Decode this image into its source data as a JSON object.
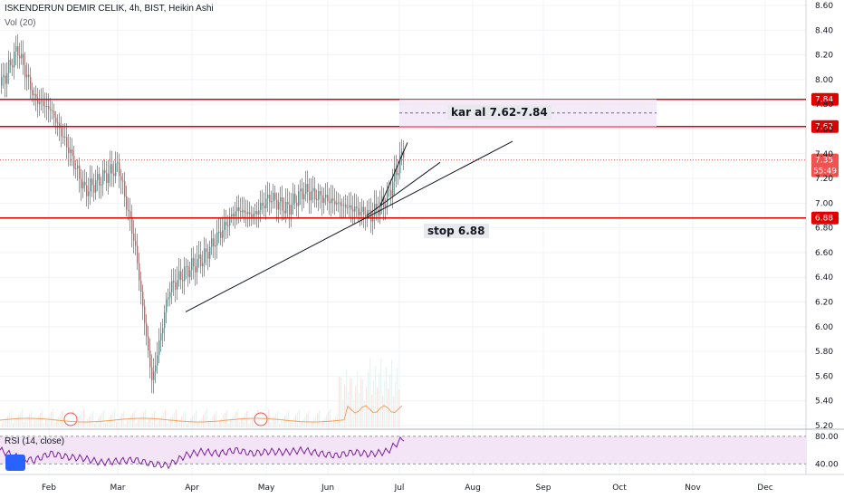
{
  "header": {
    "title": "ISKENDERUN DEMIR CELIK, 4h, BIST, Heikin Ashi",
    "volume": "Vol (20)",
    "rsi": "RSI (14, close)"
  },
  "annotations": {
    "target": "kar al 7.62-7.84",
    "stop": "stop 6.88"
  },
  "colors": {
    "up": "#26a69a",
    "down": "#ef5350",
    "level": "#e00000",
    "rsi": "#7b1fa2",
    "rsi_band": "#f3e5f5",
    "volume_ma": "#f5a05a",
    "tag_current": "#ef5350"
  },
  "chart_data": [
    {
      "type": "line",
      "subtype": "heikin-ashi candles",
      "title": "ISKENDERUN DEMIR CELIK, 4h, BIST, Heikin Ashi",
      "x_ticks": [
        "Feb",
        "Mar",
        "Apr",
        "May",
        "Jun",
        "Jul",
        "Aug",
        "Sep",
        "Oct",
        "Nov",
        "Dec"
      ],
      "y_ticks": [
        "8.60",
        "8.40",
        "8.20",
        "8.00",
        "7.80",
        "7.60",
        "7.40",
        "7.20",
        "7.00",
        "6.80",
        "6.60",
        "6.40",
        "6.20",
        "6.00",
        "5.80",
        "5.60",
        "5.40",
        "5.20"
      ],
      "ylim": [
        5.2,
        8.6
      ],
      "series": [
        {
          "name": "",
          "x": [
            "Jan 20",
            "Jan 25",
            "Feb 1",
            "Feb 8",
            "Feb 15",
            "Feb 22",
            "Mar 1",
            "Mar 8",
            "Mar 15",
            "Mar 20",
            "Mar 25",
            "Apr 1",
            "Apr 8",
            "Apr 15",
            "Apr 22",
            "May 1",
            "May 8",
            "May 15",
            "May 22",
            "Jun 1",
            "Jun 8",
            "Jun 15",
            "Jun 22",
            "Jun 29",
            "Jul 1"
          ],
          "values": [
            7.95,
            8.25,
            7.85,
            7.75,
            7.45,
            7.1,
            7.2,
            7.3,
            6.65,
            5.55,
            6.3,
            6.45,
            6.55,
            6.75,
            6.95,
            6.9,
            7.05,
            6.95,
            7.1,
            7.05,
            7.0,
            6.95,
            6.9,
            7.05,
            7.45
          ]
        }
      ],
      "levels": [
        {
          "value": "7.84",
          "color": "#e00000"
        },
        {
          "value": "7.62",
          "color": "#e00000"
        },
        {
          "value": "6.88",
          "color": "#e00000"
        }
      ],
      "current_price": "7.35",
      "countdown": "55:49",
      "grid": true
    },
    {
      "type": "line",
      "title": "RSI (14, close)",
      "y_ticks": [
        "80.00",
        "40.00"
      ],
      "ylim": [
        30,
        85
      ],
      "series": [
        {
          "name": "",
          "values": [
            60,
            50,
            45,
            55,
            50,
            48,
            42,
            44,
            46,
            40,
            38,
            52,
            58,
            55,
            60,
            55,
            58,
            57,
            60,
            55,
            52,
            57,
            54,
            58,
            78
          ]
        }
      ]
    }
  ]
}
